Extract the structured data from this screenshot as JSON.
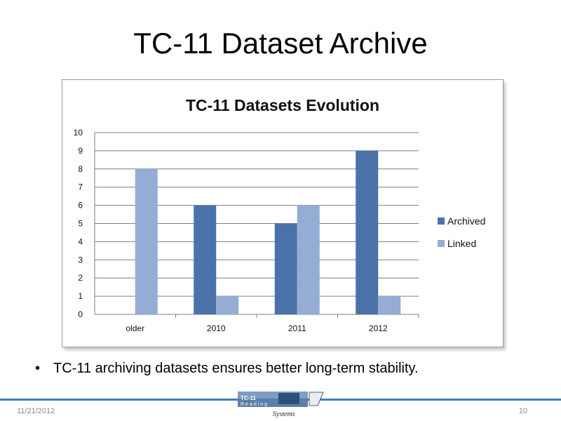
{
  "slide": {
    "title": "TC-11 Dataset Archive",
    "bullet": "TC-11 archiving datasets ensures better long-term stability."
  },
  "footer": {
    "date": "11/21/2012",
    "page_number": "10",
    "logo_text": "TC-11 Reading Systems"
  },
  "chart_data": {
    "type": "bar",
    "title": "TC-11 Datasets Evolution",
    "categories": [
      "older",
      "2010",
      "2011",
      "2012"
    ],
    "series": [
      {
        "name": "Archived",
        "values": [
          0,
          6,
          5,
          9
        ],
        "color": "#4a72a8"
      },
      {
        "name": "Linked",
        "values": [
          8,
          1,
          6,
          1
        ],
        "color": "#95acd4"
      }
    ],
    "ylim": [
      0,
      10
    ],
    "yticks": [
      0,
      1,
      2,
      3,
      4,
      5,
      6,
      7,
      8,
      9,
      10
    ],
    "grid": true,
    "legend": "right"
  }
}
